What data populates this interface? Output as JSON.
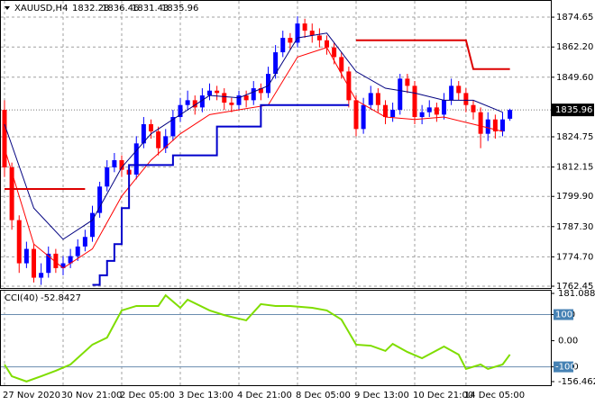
{
  "chart_data": {
    "type": "candlestick",
    "symbol": "XAUUSD,H4",
    "open": [
      1836,
      1812,
      1790,
      1772,
      1778,
      1766,
      1768,
      1776,
      1770,
      1772,
      1775,
      1779,
      1783,
      1793,
      1804,
      1812,
      1815,
      1811,
      1809,
      1822,
      1830,
      1827,
      1820,
      1825,
      1833,
      1838,
      1840,
      1837,
      1842,
      1844,
      1843,
      1839,
      1838,
      1842,
      1840,
      1845,
      1843,
      1851,
      1860,
      1866,
      1864,
      1872,
      1869,
      1867,
      1865,
      1862,
      1858,
      1852,
      1840,
      1828,
      1838,
      1843,
      1838,
      1833,
      1836,
      1849,
      1846,
      1833,
      1835,
      1837,
      1834,
      1840,
      1846,
      1843,
      1838,
      1835,
      1826,
      1832,
      1827,
      1832.28
    ],
    "high": [
      1840,
      1814,
      1792,
      1781,
      1780,
      1772,
      1779,
      1778,
      1775,
      1778,
      1782,
      1786,
      1796,
      1806,
      1815,
      1818,
      1817,
      1813,
      1825,
      1833,
      1832,
      1829,
      1828,
      1836,
      1841,
      1844,
      1842,
      1845,
      1847,
      1846,
      1845,
      1841,
      1844,
      1844,
      1848,
      1847,
      1854,
      1863,
      1869,
      1868,
      1875,
      1874,
      1872,
      1870,
      1867,
      1864,
      1860,
      1854,
      1842,
      1841,
      1846,
      1845,
      1840,
      1839,
      1851,
      1851,
      1848,
      1838,
      1840,
      1839,
      1843,
      1849,
      1848,
      1845,
      1840,
      1837,
      1835,
      1834,
      1835,
      1836.46
    ],
    "low": [
      1808,
      1786,
      1768,
      1770,
      1764,
      1763,
      1766,
      1768,
      1767,
      1770,
      1773,
      1777,
      1781,
      1791,
      1802,
      1810,
      1808,
      1806,
      1807,
      1820,
      1824,
      1817,
      1818,
      1823,
      1831,
      1836,
      1834,
      1835,
      1840,
      1840,
      1836,
      1835,
      1836,
      1837,
      1838,
      1840,
      1841,
      1849,
      1858,
      1861,
      1862,
      1866,
      1864,
      1862,
      1859,
      1855,
      1849,
      1837,
      1825,
      1826,
      1836,
      1835,
      1830,
      1831,
      1834,
      1843,
      1830,
      1830,
      1833,
      1831,
      1832,
      1838,
      1840,
      1835,
      1832,
      1820,
      1823,
      1824,
      1825,
      1831.43
    ],
    "close": [
      1812,
      1790,
      1772,
      1778,
      1766,
      1768,
      1776,
      1770,
      1772,
      1775,
      1779,
      1783,
      1793,
      1804,
      1812,
      1815,
      1811,
      1809,
      1822,
      1830,
      1827,
      1820,
      1825,
      1833,
      1838,
      1840,
      1837,
      1842,
      1844,
      1843,
      1839,
      1838,
      1842,
      1840,
      1845,
      1843,
      1851,
      1860,
      1866,
      1864,
      1872,
      1869,
      1867,
      1865,
      1862,
      1858,
      1852,
      1840,
      1828,
      1838,
      1843,
      1838,
      1833,
      1836,
      1849,
      1846,
      1833,
      1835,
      1837,
      1834,
      1840,
      1846,
      1843,
      1838,
      1835,
      1826,
      1832,
      1827,
      1832,
      1835.96
    ],
    "up_color": "#0000ff",
    "down_color": "#ff0000",
    "lines": [
      {
        "color": "#000080",
        "x": [
          0,
          4,
          8,
          12,
          16,
          20,
          24,
          28,
          32,
          36,
          40,
          44,
          48,
          52,
          56,
          60,
          64,
          68
        ],
        "values": [
          1830,
          1795,
          1782,
          1790,
          1812,
          1826,
          1834,
          1842,
          1841,
          1846,
          1866,
          1868,
          1852,
          1845,
          1843,
          1840,
          1840,
          1835
        ]
      },
      {
        "color": "#ff0000",
        "x": [
          0,
          4,
          8,
          12,
          16,
          20,
          24,
          28,
          32,
          36,
          40,
          44,
          48,
          52,
          56,
          60,
          64,
          68
        ],
        "values": [
          1820,
          1780,
          1770,
          1778,
          1800,
          1815,
          1826,
          1834,
          1836,
          1838,
          1858,
          1862,
          1840,
          1833,
          1832,
          1833,
          1830,
          1827
        ]
      },
      {
        "color": "#0000cc",
        "width": 2,
        "x": [
          12,
          13,
          13,
          14,
          14,
          15,
          15,
          16,
          16,
          17,
          17,
          22,
          22,
          23,
          23,
          28,
          28,
          29,
          29,
          35,
          35,
          36,
          36,
          37,
          37,
          47
        ],
        "values": [
          1763,
          1763,
          1767,
          1767,
          1773,
          1773,
          1780,
          1780,
          1795,
          1795,
          1813,
          1813,
          1813,
          1813,
          1817,
          1817,
          1817,
          1817,
          1829,
          1829,
          1838,
          1838,
          1838,
          1838,
          1838,
          1838
        ]
      },
      {
        "color": "#dd0000",
        "width": 2,
        "x": [
          0,
          11,
          11,
          48,
          63,
          64,
          69
        ],
        "values": [
          1803,
          1803,
          null,
          1865,
          1865,
          1853,
          1853
        ]
      }
    ],
    "ylim": [
      1761.7,
      1881.8
    ],
    "yticks": [
      {
        "value": 1874.65,
        "label": "1874.65"
      },
      {
        "value": 1862.2,
        "label": "1862.20"
      },
      {
        "value": 1849.6,
        "label": "1849.60"
      },
      {
        "value": 1824.75,
        "label": "1824.75"
      },
      {
        "value": 1812.15,
        "label": "1812.15"
      },
      {
        "value": 1799.9,
        "label": "1799.90"
      },
      {
        "value": 1787.3,
        "label": "1787.30"
      },
      {
        "value": 1774.7,
        "label": "1774.70"
      },
      {
        "value": 1762.45,
        "label": "1762.45"
      }
    ],
    "last_price": 1835.96,
    "xticks": [
      {
        "value": 0,
        "label": "27 Nov 2020"
      },
      {
        "value": 8,
        "label": "30 Nov 21:00"
      },
      {
        "value": 16,
        "label": "2 Dec 05:00"
      },
      {
        "value": 24,
        "label": "3 Dec 13:00"
      },
      {
        "value": 32,
        "label": "4 Dec 21:00"
      },
      {
        "value": 40,
        "label": "8 Dec 05:00"
      },
      {
        "value": 48,
        "label": "9 Dec 13:00"
      },
      {
        "value": 56,
        "label": "10 Dec 21:00"
      },
      {
        "value": 63,
        "label": "14 Dec 05:00"
      }
    ],
    "cci": {
      "name": "CCI(40)",
      "last": -52.8427,
      "color": "#7fdd00",
      "x": [
        0,
        1,
        3,
        5,
        7,
        9,
        12,
        14,
        16,
        18,
        21,
        22,
        24,
        25,
        28,
        30,
        31,
        33,
        35,
        37,
        39,
        42,
        44,
        46,
        48,
        50,
        52,
        53,
        55,
        57,
        60,
        62,
        63,
        65,
        66,
        68,
        69
      ],
      "values": [
        -91,
        -136,
        -156,
        -136,
        -115,
        -91,
        -15,
        12,
        116,
        133,
        133,
        174,
        126,
        157,
        116,
        98,
        91,
        78,
        140,
        133,
        133,
        126,
        116,
        81,
        -15,
        -19,
        -39,
        -12,
        -43,
        -67,
        -22,
        -53,
        -108,
        -91,
        -108,
        -91,
        -52.8427
      ],
      "ylim": [
        -170.2,
        194.9
      ],
      "yticks": [
        {
          "value": 181.0887,
          "label": "181.0887"
        },
        100,
        {
          "value": 0,
          "label": "0.00"
        },
        -100,
        -156.462
      ],
      "levels": [
        100,
        -100
      ]
    }
  }
}
